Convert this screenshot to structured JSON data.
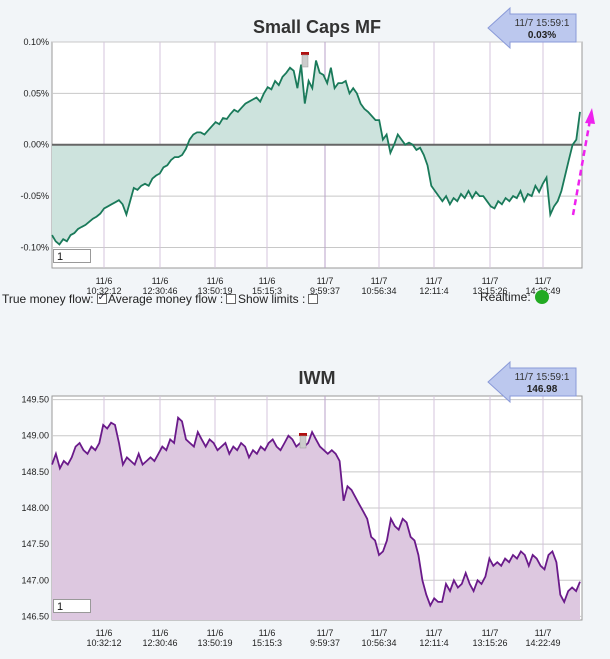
{
  "chart_data": [
    {
      "type": "area",
      "title": "Small Caps MF",
      "ylim": [
        -0.12,
        0.1
      ],
      "yticks": [
        "0.10%",
        "0.05%",
        "0.00%",
        "-0.05%",
        "-0.10%"
      ],
      "ytick_values": [
        0.1,
        0.05,
        0.0,
        -0.05,
        -0.1
      ],
      "x_ticks": [
        {
          "date": "11/6",
          "time": "10:32:12"
        },
        {
          "date": "11/6",
          "time": "12:30:46"
        },
        {
          "date": "11/6",
          "time": "13:50:19"
        },
        {
          "date": "11/6",
          "time": "15:15:3"
        },
        {
          "date": "11/7",
          "time": "9:59:37"
        },
        {
          "date": "11/7",
          "time": "10:56:34"
        },
        {
          "date": "11/7",
          "time": "12:11:4"
        },
        {
          "date": "11/7",
          "time": "13:15:26"
        },
        {
          "date": "11/7",
          "time": "14:22:49"
        }
      ],
      "baseline": 0,
      "grid": true,
      "series_color": "#1a7a5a",
      "fill_color": "#cde3dd",
      "callout": {
        "time": "11/7 15:59:1",
        "value": "0.03%"
      },
      "input_value": "1",
      "y": [
        -0.088,
        -0.094,
        -0.097,
        -0.092,
        -0.094,
        -0.088,
        -0.086,
        -0.082,
        -0.08,
        -0.078,
        -0.075,
        -0.072,
        -0.07,
        -0.067,
        -0.062,
        -0.06,
        -0.058,
        -0.056,
        -0.054,
        -0.058,
        -0.068,
        -0.055,
        -0.042,
        -0.044,
        -0.04,
        -0.038,
        -0.04,
        -0.033,
        -0.03,
        -0.028,
        -0.022,
        -0.02,
        -0.015,
        -0.012,
        -0.012,
        -0.01,
        -0.004,
        0.005,
        0.01,
        0.012,
        0.012,
        0.01,
        0.014,
        0.018,
        0.022,
        0.02,
        0.026,
        0.025,
        0.03,
        0.034,
        0.032,
        0.036,
        0.04,
        0.042,
        0.044,
        0.046,
        0.042,
        0.05,
        0.056,
        0.054,
        0.062,
        0.058,
        0.066,
        0.07,
        0.075,
        0.072,
        0.055,
        0.078,
        0.04,
        0.062,
        0.055,
        0.082,
        0.07,
        0.068,
        0.06,
        0.075,
        0.055,
        0.06,
        0.06,
        0.062,
        0.05,
        0.055,
        0.05,
        0.04,
        0.035,
        0.032,
        0.028,
        0.024,
        0.024,
        0.005,
        0.01,
        -0.008,
        0.0,
        0.01,
        0.005,
        0.0,
        0.002,
        0.0,
        -0.005,
        -0.003,
        -0.01,
        -0.02,
        -0.04,
        -0.045,
        -0.05,
        -0.055,
        -0.05,
        -0.058,
        -0.052,
        -0.055,
        -0.048,
        -0.052,
        -0.045,
        -0.052,
        -0.046,
        -0.05,
        -0.05,
        -0.055,
        -0.06,
        -0.062,
        -0.055,
        -0.058,
        -0.052,
        -0.055,
        -0.05,
        -0.052,
        -0.045,
        -0.055,
        -0.048,
        -0.05,
        -0.04,
        -0.046,
        -0.038,
        -0.032,
        -0.068,
        -0.06,
        -0.055,
        -0.045,
        -0.03,
        -0.015,
        0.0,
        0.005,
        0.032
      ]
    },
    {
      "type": "area",
      "title": "IWM",
      "ylim": [
        146.45,
        149.55
      ],
      "yticks": [
        "149.50",
        "149.00",
        "148.50",
        "148.00",
        "147.50",
        "147.00",
        "146.50"
      ],
      "ytick_values": [
        149.5,
        149.0,
        148.5,
        148.0,
        147.5,
        147.0,
        146.5
      ],
      "x_ticks": [
        {
          "date": "11/6",
          "time": "10:32:12"
        },
        {
          "date": "11/6",
          "time": "12:30:46"
        },
        {
          "date": "11/6",
          "time": "13:50:19"
        },
        {
          "date": "11/6",
          "time": "15:15:3"
        },
        {
          "date": "11/7",
          "time": "9:59:37"
        },
        {
          "date": "11/7",
          "time": "10:56:34"
        },
        {
          "date": "11/7",
          "time": "12:11:4"
        },
        {
          "date": "11/7",
          "time": "13:15:26"
        },
        {
          "date": "11/7",
          "time": "14:22:49"
        }
      ],
      "grid": true,
      "series_color": "#6a1a8a",
      "fill_color": "#ddc8e0",
      "callout": {
        "time": "11/7 15:59:1",
        "value": "146.98"
      },
      "input_value": "1",
      "y": [
        148.6,
        148.75,
        148.55,
        148.65,
        148.6,
        148.7,
        148.85,
        148.9,
        148.8,
        148.75,
        148.85,
        148.8,
        148.9,
        149.15,
        149.1,
        149.18,
        149.15,
        148.9,
        148.6,
        148.7,
        148.65,
        148.6,
        148.75,
        148.6,
        148.65,
        148.7,
        148.65,
        148.75,
        148.85,
        148.8,
        148.95,
        148.9,
        149.25,
        149.2,
        148.95,
        148.9,
        148.85,
        149.05,
        148.95,
        148.85,
        148.95,
        148.9,
        148.8,
        148.85,
        148.9,
        148.75,
        148.85,
        148.8,
        148.9,
        148.85,
        148.7,
        148.8,
        148.75,
        148.85,
        148.8,
        148.9,
        148.95,
        148.85,
        148.8,
        148.9,
        149.0,
        148.95,
        148.85,
        148.9,
        148.85,
        148.9,
        149.05,
        148.95,
        148.85,
        148.8,
        148.75,
        148.8,
        148.75,
        148.65,
        148.1,
        148.3,
        148.25,
        148.15,
        148.05,
        147.95,
        147.85,
        147.6,
        147.55,
        147.35,
        147.4,
        147.55,
        147.85,
        147.75,
        147.7,
        147.85,
        147.8,
        147.6,
        147.55,
        147.35,
        147.0,
        146.8,
        146.65,
        146.75,
        146.7,
        146.7,
        146.95,
        146.85,
        147.0,
        146.9,
        146.95,
        147.1,
        146.95,
        146.85,
        147.0,
        146.95,
        147.05,
        147.3,
        147.2,
        147.25,
        147.2,
        147.3,
        147.25,
        147.35,
        147.3,
        147.4,
        147.35,
        147.2,
        147.35,
        147.3,
        147.2,
        147.15,
        147.35,
        147.4,
        147.25,
        146.8,
        146.7,
        146.85,
        146.9,
        146.85,
        146.98
      ]
    }
  ],
  "controls": {
    "true_money_flow": "True money flow:",
    "average_money_flow": "Average money flow :",
    "show_limits": "Show limits :",
    "realtime": "Realtime:"
  }
}
